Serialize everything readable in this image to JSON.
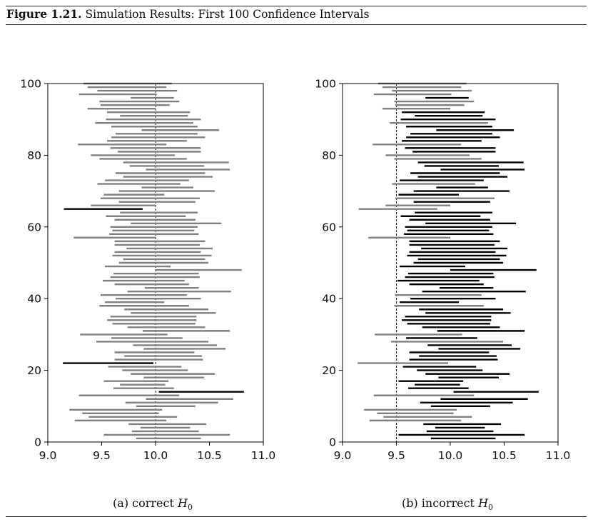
{
  "figure": {
    "label": "Figure 1.21.",
    "title": "Simulation Results: First 100 Confidence Intervals"
  },
  "colors": {
    "covering": "#808080",
    "missing": "#000000",
    "reference_line": "#000000"
  },
  "chart_data": [
    {
      "type": "interval",
      "subtitle_prefix": "(a) correct ",
      "subtitle_math": "H",
      "subtitle_sub": "0",
      "xlim": [
        9.0,
        11.0
      ],
      "ylim": [
        0,
        100
      ],
      "xticks": [
        "9.0",
        "9.5",
        "10.0",
        "10.5",
        "11.0"
      ],
      "yticks": [
        "0",
        "20",
        "40",
        "60",
        "80",
        "100"
      ],
      "reference_line": 10.0,
      "intervals": [
        [
          9.82,
          10.42
        ],
        [
          9.52,
          10.69
        ],
        [
          9.78,
          10.4
        ],
        [
          9.86,
          10.32
        ],
        [
          9.75,
          10.47
        ],
        [
          9.25,
          10.1
        ],
        [
          9.38,
          10.2
        ],
        [
          9.32,
          10.03
        ],
        [
          9.2,
          10.06
        ],
        [
          9.82,
          10.37
        ],
        [
          9.72,
          10.58
        ],
        [
          9.91,
          10.72
        ],
        [
          9.29,
          10.22
        ],
        [
          10.03,
          10.82
        ],
        [
          9.61,
          10.17
        ],
        [
          9.67,
          10.09
        ],
        [
          9.52,
          10.12
        ],
        [
          9.89,
          10.45
        ],
        [
          9.77,
          10.55
        ],
        [
          9.69,
          10.3
        ],
        [
          9.56,
          10.24
        ],
        [
          9.14,
          9.98
        ],
        [
          9.62,
          10.44
        ],
        [
          9.71,
          10.43
        ],
        [
          9.62,
          10.36
        ],
        [
          9.89,
          10.65
        ],
        [
          9.79,
          10.57
        ],
        [
          9.45,
          10.49
        ],
        [
          9.59,
          10.25
        ],
        [
          9.3,
          10.11
        ],
        [
          9.88,
          10.69
        ],
        [
          9.74,
          10.46
        ],
        [
          9.6,
          10.37
        ],
        [
          9.55,
          10.38
        ],
        [
          9.58,
          10.38
        ],
        [
          9.77,
          10.56
        ],
        [
          9.71,
          10.49
        ],
        [
          9.48,
          10.31
        ],
        [
          9.53,
          10.08
        ],
        [
          9.63,
          10.42
        ],
        [
          9.49,
          10.29
        ],
        [
          9.74,
          10.7
        ],
        [
          9.9,
          10.4
        ],
        [
          9.62,
          10.31
        ],
        [
          9.51,
          10.27
        ],
        [
          9.58,
          10.41
        ],
        [
          9.61,
          10.4
        ],
        [
          10.0,
          10.8
        ],
        [
          9.53,
          10.14
        ],
        [
          9.66,
          10.49
        ],
        [
          9.7,
          10.46
        ],
        [
          9.6,
          10.52
        ],
        [
          9.62,
          10.42
        ],
        [
          9.73,
          10.53
        ],
        [
          9.62,
          10.41
        ],
        [
          9.62,
          10.46
        ],
        [
          9.24,
          10.0
        ],
        [
          9.57,
          10.4
        ],
        [
          9.6,
          10.36
        ],
        [
          9.58,
          10.39
        ],
        [
          9.77,
          10.61
        ],
        [
          9.62,
          10.37
        ],
        [
          9.54,
          10.28
        ],
        [
          9.67,
          10.39
        ],
        [
          9.15,
          9.88
        ],
        [
          9.4,
          10.0
        ],
        [
          9.66,
          10.37
        ],
        [
          9.49,
          10.41
        ],
        [
          9.52,
          10.08
        ],
        [
          9.66,
          10.55
        ],
        [
          9.87,
          10.35
        ],
        [
          9.46,
          10.23
        ],
        [
          9.53,
          10.31
        ],
        [
          9.7,
          10.53
        ],
        [
          9.63,
          10.46
        ],
        [
          9.91,
          10.69
        ],
        [
          9.76,
          10.45
        ],
        [
          9.7,
          10.68
        ],
        [
          9.48,
          10.29
        ],
        [
          9.4,
          10.18
        ],
        [
          9.65,
          10.42
        ],
        [
          9.58,
          10.42
        ],
        [
          9.28,
          10.1
        ],
        [
          9.55,
          10.29
        ],
        [
          9.59,
          10.46
        ],
        [
          9.63,
          10.39
        ],
        [
          9.87,
          10.59
        ],
        [
          9.59,
          10.39
        ],
        [
          9.44,
          10.35
        ],
        [
          9.54,
          10.42
        ],
        [
          9.67,
          10.3
        ],
        [
          9.55,
          10.32
        ],
        [
          9.37,
          10.0
        ],
        [
          9.49,
          10.13
        ],
        [
          9.48,
          10.22
        ],
        [
          9.77,
          10.17
        ],
        [
          9.29,
          10.01
        ],
        [
          9.46,
          10.2
        ],
        [
          9.37,
          10.1
        ],
        [
          9.33,
          10.15
        ]
      ]
    },
    {
      "type": "interval",
      "subtitle_prefix": "(b) incorrect ",
      "subtitle_math": "H",
      "subtitle_sub": "0",
      "xlim": [
        9.0,
        11.0
      ],
      "ylim": [
        0,
        100
      ],
      "xticks": [
        "9.0",
        "9.5",
        "10.0",
        "10.5",
        "11.0"
      ],
      "yticks": [
        "0",
        "20",
        "40",
        "60",
        "80",
        "100"
      ],
      "reference_line": 9.5,
      "intervals": [
        [
          9.82,
          10.42
        ],
        [
          9.52,
          10.69
        ],
        [
          9.78,
          10.4
        ],
        [
          9.86,
          10.32
        ],
        [
          9.75,
          10.47
        ],
        [
          9.25,
          10.1
        ],
        [
          9.38,
          10.2
        ],
        [
          9.32,
          10.03
        ],
        [
          9.2,
          10.06
        ],
        [
          9.82,
          10.37
        ],
        [
          9.72,
          10.58
        ],
        [
          9.91,
          10.72
        ],
        [
          9.29,
          10.22
        ],
        [
          10.03,
          10.82
        ],
        [
          9.61,
          10.17
        ],
        [
          9.67,
          10.09
        ],
        [
          9.52,
          10.12
        ],
        [
          9.89,
          10.45
        ],
        [
          9.77,
          10.55
        ],
        [
          9.69,
          10.3
        ],
        [
          9.56,
          10.24
        ],
        [
          9.14,
          9.98
        ],
        [
          9.62,
          10.44
        ],
        [
          9.71,
          10.43
        ],
        [
          9.62,
          10.36
        ],
        [
          9.89,
          10.65
        ],
        [
          9.79,
          10.57
        ],
        [
          9.45,
          10.49
        ],
        [
          9.59,
          10.25
        ],
        [
          9.3,
          10.11
        ],
        [
          9.88,
          10.69
        ],
        [
          9.74,
          10.46
        ],
        [
          9.6,
          10.37
        ],
        [
          9.55,
          10.38
        ],
        [
          9.58,
          10.38
        ],
        [
          9.77,
          10.56
        ],
        [
          9.71,
          10.49
        ],
        [
          9.48,
          10.31
        ],
        [
          9.53,
          10.08
        ],
        [
          9.63,
          10.42
        ],
        [
          9.49,
          10.29
        ],
        [
          9.74,
          10.7
        ],
        [
          9.9,
          10.4
        ],
        [
          9.62,
          10.31
        ],
        [
          9.51,
          10.27
        ],
        [
          9.58,
          10.41
        ],
        [
          9.61,
          10.4
        ],
        [
          10.0,
          10.8
        ],
        [
          9.53,
          10.14
        ],
        [
          9.66,
          10.49
        ],
        [
          9.7,
          10.46
        ],
        [
          9.6,
          10.52
        ],
        [
          9.62,
          10.42
        ],
        [
          9.73,
          10.53
        ],
        [
          9.62,
          10.41
        ],
        [
          9.62,
          10.46
        ],
        [
          9.24,
          10.0
        ],
        [
          9.57,
          10.4
        ],
        [
          9.6,
          10.36
        ],
        [
          9.58,
          10.39
        ],
        [
          9.77,
          10.61
        ],
        [
          9.62,
          10.37
        ],
        [
          9.54,
          10.28
        ],
        [
          9.67,
          10.39
        ],
        [
          9.15,
          9.88
        ],
        [
          9.4,
          10.0
        ],
        [
          9.66,
          10.37
        ],
        [
          9.49,
          10.41
        ],
        [
          9.52,
          10.08
        ],
        [
          9.66,
          10.55
        ],
        [
          9.87,
          10.35
        ],
        [
          9.46,
          10.23
        ],
        [
          9.53,
          10.31
        ],
        [
          9.7,
          10.53
        ],
        [
          9.63,
          10.46
        ],
        [
          9.91,
          10.69
        ],
        [
          9.76,
          10.45
        ],
        [
          9.7,
          10.68
        ],
        [
          9.48,
          10.29
        ],
        [
          9.4,
          10.18
        ],
        [
          9.65,
          10.42
        ],
        [
          9.58,
          10.42
        ],
        [
          9.28,
          10.1
        ],
        [
          9.55,
          10.29
        ],
        [
          9.59,
          10.46
        ],
        [
          9.63,
          10.39
        ],
        [
          9.87,
          10.59
        ],
        [
          9.59,
          10.39
        ],
        [
          9.44,
          10.35
        ],
        [
          9.54,
          10.42
        ],
        [
          9.67,
          10.3
        ],
        [
          9.55,
          10.32
        ],
        [
          9.37,
          10.0
        ],
        [
          9.49,
          10.13
        ],
        [
          9.48,
          10.22
        ],
        [
          9.77,
          10.17
        ],
        [
          9.29,
          10.01
        ],
        [
          9.46,
          10.2
        ],
        [
          9.37,
          10.1
        ],
        [
          9.33,
          10.15
        ]
      ]
    }
  ]
}
